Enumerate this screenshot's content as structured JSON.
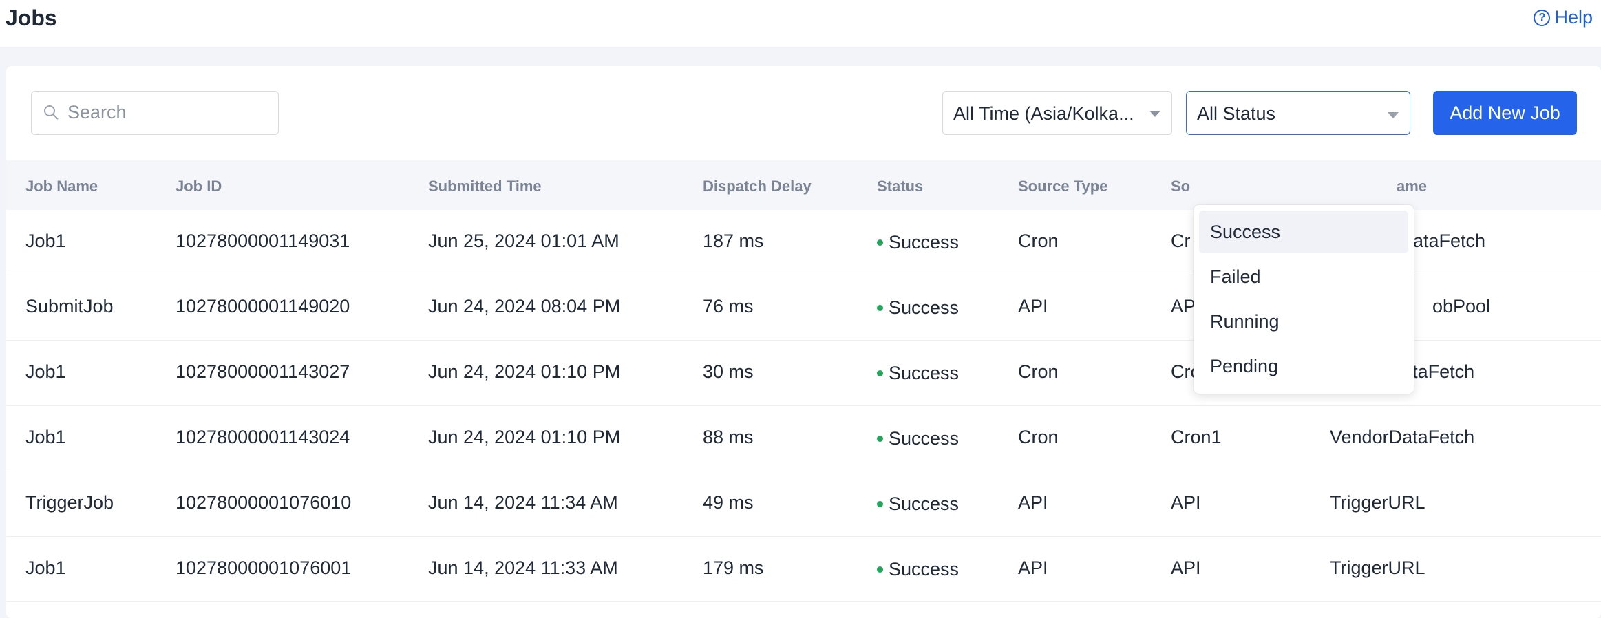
{
  "header": {
    "title": "Jobs",
    "help_label": "Help"
  },
  "toolbar": {
    "search_placeholder": "Search",
    "time_filter_value": "All Time (Asia/Kolka...",
    "status_filter_value": "All Status",
    "add_button_label": "Add New Job"
  },
  "status_dropdown": {
    "options": [
      "Success",
      "Failed",
      "Running",
      "Pending"
    ],
    "highlighted": "Success"
  },
  "table": {
    "columns": [
      "Job Name",
      "Job ID",
      "Submitted Time",
      "Dispatch Delay",
      "Status",
      "Source Type",
      "So",
      "ame"
    ],
    "rows": [
      {
        "job_name": "Job1",
        "job_id": "10278000001149031",
        "submitted": "Jun 25, 2024 01:01 AM",
        "delay": "187 ms",
        "status": "Success",
        "source_type": "Cron",
        "source": "Cr",
        "target": "ataFetch"
      },
      {
        "job_name": "SubmitJob",
        "job_id": "10278000001149020",
        "submitted": "Jun 24, 2024 08:04 PM",
        "delay": "76 ms",
        "status": "Success",
        "source_type": "API",
        "source": "AP",
        "target": "obPool"
      },
      {
        "job_name": "Job1",
        "job_id": "10278000001143027",
        "submitted": "Jun 24, 2024 01:10 PM",
        "delay": "30 ms",
        "status": "Success",
        "source_type": "Cron",
        "source": "Cron1",
        "target": "VendorDataFetch"
      },
      {
        "job_name": "Job1",
        "job_id": "10278000001143024",
        "submitted": "Jun 24, 2024 01:10 PM",
        "delay": "88 ms",
        "status": "Success",
        "source_type": "Cron",
        "source": "Cron1",
        "target": "VendorDataFetch"
      },
      {
        "job_name": "TriggerJob",
        "job_id": "10278000001076010",
        "submitted": "Jun 14, 2024 11:34 AM",
        "delay": "49 ms",
        "status": "Success",
        "source_type": "API",
        "source": "API",
        "target": "TriggerURL"
      },
      {
        "job_name": "Job1",
        "job_id": "10278000001076001",
        "submitted": "Jun 14, 2024 11:33 AM",
        "delay": "179 ms",
        "status": "Success",
        "source_type": "API",
        "source": "API",
        "target": "TriggerURL"
      }
    ]
  },
  "colors": {
    "accent": "#2563eb",
    "success": "#22a55b",
    "header_text": "#7b8494"
  }
}
